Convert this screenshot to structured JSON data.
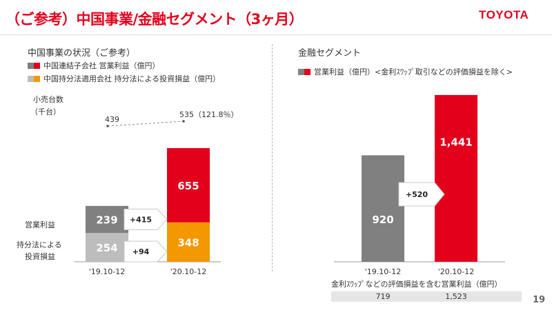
{
  "header": {
    "title": "（ご参考）中国事業/金融セグメント（3ヶ月）",
    "logo": "TOYOTA",
    "page_number": "19"
  },
  "colors": {
    "red": "#e3001b",
    "dark_gray": "#808080",
    "light_gray": "#bdbdbd",
    "orange": "#f39800"
  },
  "left_panel": {
    "title": "中国事業の状況（ご参考）",
    "legend": [
      {
        "label": "中国連結子会社 営業利益（億円）"
      },
      {
        "label": "中国持分法適用会社 持分法による投資損益（億円）"
      }
    ],
    "unit_label_line1": "小売台数",
    "unit_label_line2": "（千台）",
    "row_label_op": "営業利益",
    "row_label_eq_line1": "持分法による",
    "row_label_eq_line2": "投資損益"
  },
  "right_panel": {
    "title": "金融セグメント",
    "legend_label": "営業利益（億円）<金利ｽﾜｯﾌﾟ取引などの評価損益を除く>",
    "footer_label": "金利ｽﾜｯﾌﾟなどの評価損益を含む営業利益（億円）"
  },
  "chart_data": [
    {
      "type": "bar",
      "stacked": true,
      "title": "中国事業の状況（ご参考）",
      "categories": [
        "'19.10-12",
        "'20.10-12"
      ],
      "series": [
        {
          "name": "中国持分法適用会社 持分法による投資損益（億円）",
          "values": [
            254,
            348
          ],
          "labels": [
            "254",
            "348"
          ],
          "colors": [
            "#bdbdbd",
            "#f39800"
          ]
        },
        {
          "name": "中国連結子会社 営業利益（億円）",
          "values": [
            239,
            655
          ],
          "labels": [
            "239",
            "655"
          ],
          "colors": [
            "#808080",
            "#e3001b"
          ]
        }
      ],
      "changes": [
        {
          "series": "中国連結子会社 営業利益（億円）",
          "label": "+415"
        },
        {
          "series": "中国持分法適用会社 持分法による投資損益（億円）",
          "label": "+94"
        }
      ],
      "retail_units": {
        "values": [
          439,
          535
        ],
        "labels": [
          "439",
          "535（121.8％）"
        ]
      }
    },
    {
      "type": "bar",
      "title": "金融セグメント",
      "categories": [
        "'19.10-12",
        "'20.10-12"
      ],
      "values": [
        920,
        1441
      ],
      "labels": [
        "920",
        "1,441"
      ],
      "colors": [
        "#808080",
        "#e3001b"
      ],
      "change_label": "+520",
      "footer_values": [
        "719",
        "1,523"
      ]
    }
  ]
}
